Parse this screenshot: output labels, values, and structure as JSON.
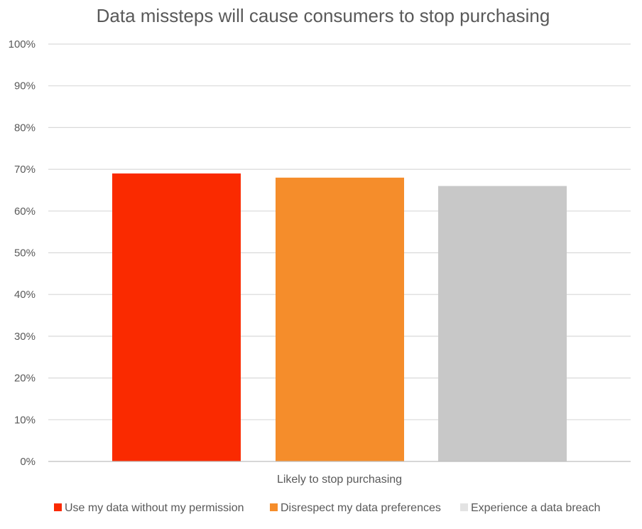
{
  "chart_data": {
    "type": "bar",
    "title": "Data missteps will cause consumers to stop purchasing",
    "categories": [
      "Likely to stop purchasing"
    ],
    "series": [
      {
        "name": "Use my data without my permission",
        "values": [
          0.69
        ],
        "color": "#FA2A00"
      },
      {
        "name": "Disrespect my data preferences",
        "values": [
          0.68
        ],
        "color": "#F58D2B"
      },
      {
        "name": "Experience a data breach",
        "values": [
          0.66
        ],
        "color": "#C8C8C8"
      }
    ],
    "legend_colors": [
      "#FA2A00",
      "#F58D2B",
      "#E3E3E3"
    ],
    "ylim": [
      0,
      1
    ],
    "yticks": [
      "0%",
      "10%",
      "20%",
      "30%",
      "40%",
      "50%",
      "60%",
      "70%",
      "80%",
      "90%",
      "100%"
    ],
    "grid": true,
    "legend": "bottom",
    "xlabel": "",
    "ylabel": ""
  }
}
